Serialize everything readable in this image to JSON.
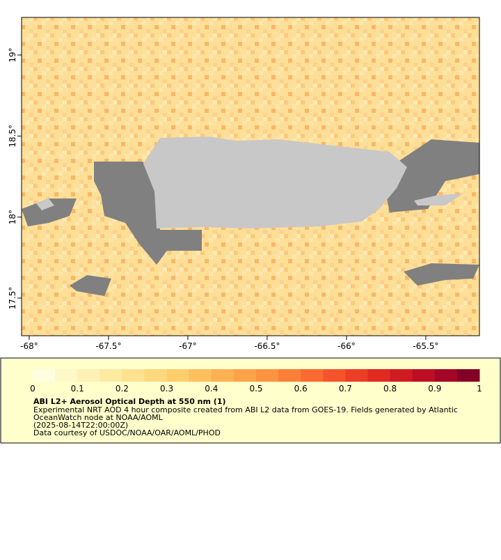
{
  "map": {
    "xlim": [
      -68.048,
      -65.162
    ],
    "ylim": [
      17.268,
      19.232
    ],
    "xticks": [
      {
        "value": -68,
        "label": "-68°"
      },
      {
        "value": -67.5,
        "label": "-67.5°"
      },
      {
        "value": -67,
        "label": "-67°"
      },
      {
        "value": -66.5,
        "label": "-66.5°"
      },
      {
        "value": -66,
        "label": "-66°"
      },
      {
        "value": -65.5,
        "label": "-65.5°"
      }
    ],
    "yticks": [
      {
        "value": 17.5,
        "label": "17.5°"
      },
      {
        "value": 18,
        "label": "18°"
      },
      {
        "value": 18.5,
        "label": "18.5°"
      },
      {
        "value": 19,
        "label": "19°"
      }
    ]
  },
  "colorbar": {
    "range": [
      0,
      1
    ],
    "ticks": [
      0,
      0.1,
      0.2,
      0.3,
      0.4,
      0.5,
      0.6,
      0.7,
      0.8,
      0.9,
      1
    ],
    "colors": [
      "#fffee0",
      "#fff8c8",
      "#fff1b5",
      "#feeaa1",
      "#fee290",
      "#fed87d",
      "#fecd6c",
      "#febf5e",
      "#fdb153",
      "#fda249",
      "#fd9340",
      "#fc7f38",
      "#fb6a31",
      "#f5532b",
      "#ec3d25",
      "#e02a21",
      "#d01c20",
      "#bc0f26",
      "#a30627",
      "#840026"
    ]
  },
  "caption": {
    "title": "ABI L2+ Aerosol Optical Depth at 550 nm (1)",
    "lines": [
      "Experimental NRT AOD 4 hour composite created from ABI L2 data from GOES-19. Fields generated by Atlantic",
      "OceanWatch node at NOAA/AOML",
      "(2025-08-14T22:00:00Z)",
      "Data courtesy of USDOC/NOAA/OAR/AOML/PHOD"
    ]
  }
}
